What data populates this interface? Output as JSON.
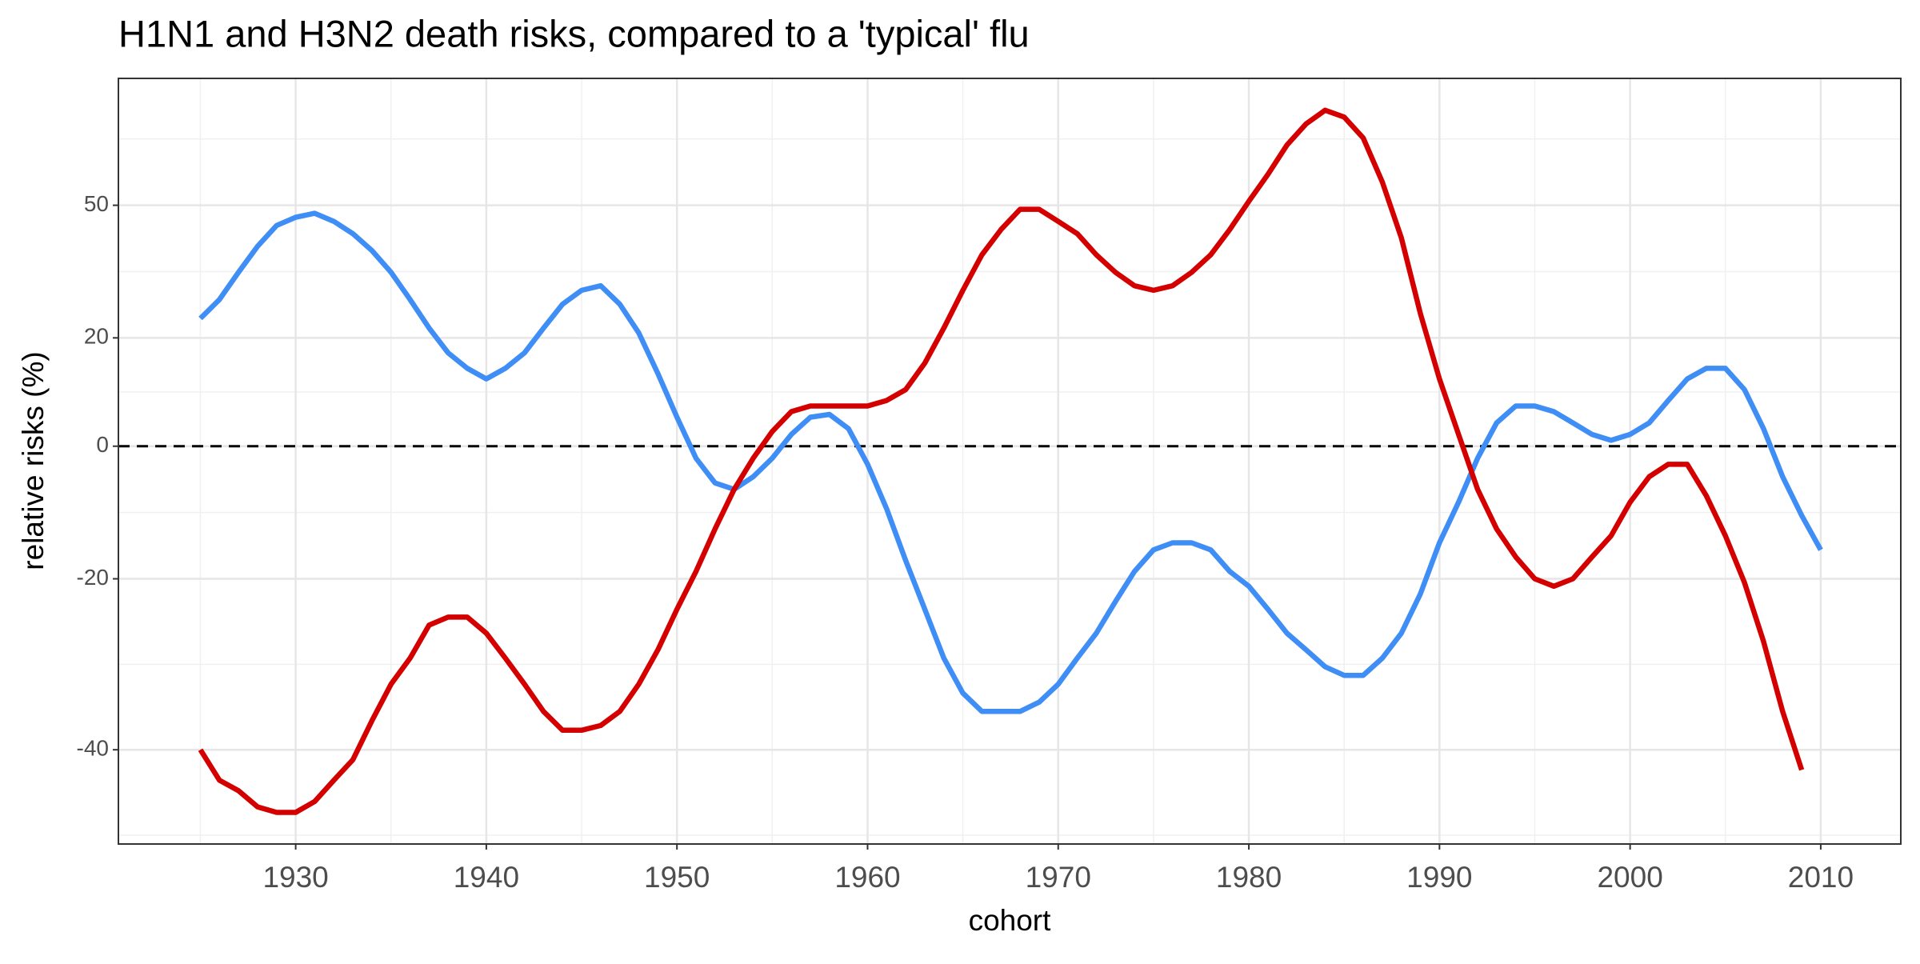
{
  "chart_data": {
    "type": "line",
    "title": "H1N1 and H3N2 death risks, compared to a 'typical' flu",
    "x_label": "cohort",
    "y_label": "relative risks (%)",
    "yscale": "log",
    "grid": true,
    "hline": 0,
    "xlim": [
      1920.7,
      2014.2
    ],
    "xticks": [
      1930,
      1940,
      1950,
      1960,
      1970,
      1980,
      1990,
      2000,
      2010
    ],
    "ylim": [
      -48.8,
      85.7
    ],
    "yticks": [
      -40,
      -20,
      0,
      20,
      50
    ],
    "x": [
      1925,
      1926,
      1927,
      1928,
      1929,
      1930,
      1931,
      1932,
      1933,
      1934,
      1935,
      1936,
      1937,
      1938,
      1939,
      1940,
      1941,
      1942,
      1943,
      1944,
      1945,
      1946,
      1947,
      1948,
      1949,
      1950,
      1951,
      1952,
      1953,
      1954,
      1955,
      1956,
      1957,
      1958,
      1959,
      1960,
      1961,
      1962,
      1963,
      1964,
      1965,
      1966,
      1967,
      1968,
      1969,
      1970,
      1971,
      1972,
      1973,
      1974,
      1975,
      1976,
      1977,
      1978,
      1979,
      1980,
      1981,
      1982,
      1983,
      1984,
      1985,
      1986,
      1987,
      1988,
      1989,
      1990,
      1991,
      1992,
      1993,
      1994,
      1995,
      1996,
      1997,
      1998,
      1999,
      2000,
      2001,
      2002,
      2003,
      2004,
      2005,
      2006,
      2007,
      2008,
      2009,
      2010
    ],
    "series": [
      {
        "color": "#3f8ef6",
        "values": [
          24,
          28,
          34,
          40,
          45,
          47,
          48,
          46,
          43,
          39,
          34,
          28,
          22,
          17,
          14,
          12,
          14,
          17,
          22,
          27,
          30,
          31,
          27,
          21,
          13,
          5,
          -2,
          -6,
          -7,
          -5,
          -2,
          2,
          5,
          5.5,
          3,
          -3,
          -10,
          -17.5,
          -24,
          -30,
          -34,
          -36,
          -36,
          -36,
          -35,
          -33,
          -30,
          -27,
          -23,
          -19,
          -16,
          -15,
          -15,
          -16,
          -19,
          -21,
          -24,
          -27,
          -29,
          -31,
          -32,
          -32,
          -30,
          -27,
          -22,
          -15,
          -9,
          -2,
          4,
          7,
          7,
          6,
          4,
          2,
          1,
          2,
          4,
          8,
          12,
          14,
          14,
          10,
          3,
          -5,
          -11,
          -16
        ]
      },
      {
        "color": "#d40000",
        "values": [
          -40,
          -43,
          -44,
          -45.5,
          -46,
          -46,
          -45,
          -43,
          -41,
          -37,
          -33,
          -30,
          -26,
          -25,
          -25,
          -27,
          -30,
          -33,
          -36,
          -38,
          -38,
          -37.5,
          -36,
          -33,
          -29,
          -24,
          -19,
          -13,
          -7,
          -2,
          2.5,
          6,
          7,
          7,
          7,
          7,
          8,
          10,
          15,
          22,
          30,
          38,
          44,
          49,
          49,
          46,
          43,
          38,
          34,
          31,
          30,
          31,
          34,
          38,
          44,
          51,
          58,
          66,
          72,
          76,
          74,
          68,
          56,
          42,
          25,
          12,
          2,
          -7,
          -13,
          -17,
          -20,
          -21,
          -20,
          -17,
          -14,
          -9,
          -5,
          -3,
          -3,
          -8,
          -14,
          -20.5,
          -28,
          -36,
          -42,
          null
        ]
      }
    ]
  }
}
